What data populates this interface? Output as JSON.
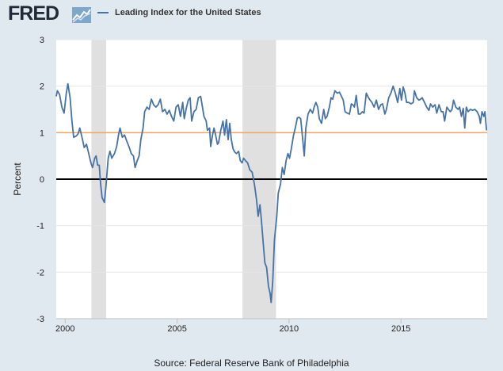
{
  "header": {
    "logo_text": "FRED",
    "legend_label": "Leading Index for the United States"
  },
  "source": "Source: Federal Reserve Bank of Philadelphia",
  "colors": {
    "series": "#4572a7",
    "reference": "#f4a460",
    "recession": "#e0e0e0",
    "background": "#e1e9f0"
  },
  "chart_data": {
    "type": "line",
    "title": "",
    "ylabel": "Percent",
    "xlim": [
      1999.6,
      2018.85
    ],
    "ylim": [
      -3,
      3
    ],
    "yticks": [
      "-3",
      "-2",
      "-1",
      "0",
      "1",
      "2",
      "3"
    ],
    "xticks": [
      "2000",
      "2005",
      "2010",
      "2015"
    ],
    "recessions": [
      [
        2001.17,
        2001.83
      ],
      [
        2007.92,
        2009.42
      ]
    ],
    "reference_line": 1,
    "zero_line": 0,
    "series": [
      {
        "name": "Leading Index for the United States",
        "points": [
          [
            1999.6,
            1.78
          ],
          [
            1999.65,
            1.9
          ],
          [
            1999.75,
            1.82
          ],
          [
            1999.85,
            1.55
          ],
          [
            1999.95,
            1.42
          ],
          [
            2000.05,
            1.85
          ],
          [
            2000.12,
            2.05
          ],
          [
            2000.22,
            1.75
          ],
          [
            2000.3,
            1.25
          ],
          [
            2000.38,
            0.9
          ],
          [
            2000.5,
            0.93
          ],
          [
            2000.58,
            0.98
          ],
          [
            2000.65,
            1.1
          ],
          [
            2000.75,
            0.9
          ],
          [
            2000.85,
            0.68
          ],
          [
            2000.95,
            0.75
          ],
          [
            2001.05,
            0.55
          ],
          [
            2001.15,
            0.35
          ],
          [
            2001.22,
            0.25
          ],
          [
            2001.32,
            0.45
          ],
          [
            2001.38,
            0.5
          ],
          [
            2001.45,
            0.3
          ],
          [
            2001.52,
            0.3
          ],
          [
            2001.58,
            -0.1
          ],
          [
            2001.65,
            -0.4
          ],
          [
            2001.75,
            -0.5
          ],
          [
            2001.83,
            -0.1
          ],
          [
            2001.92,
            0.45
          ],
          [
            2002.0,
            0.6
          ],
          [
            2002.08,
            0.45
          ],
          [
            2002.2,
            0.55
          ],
          [
            2002.3,
            0.7
          ],
          [
            2002.38,
            0.95
          ],
          [
            2002.45,
            1.1
          ],
          [
            2002.55,
            0.9
          ],
          [
            2002.65,
            0.95
          ],
          [
            2002.75,
            0.82
          ],
          [
            2002.85,
            0.7
          ],
          [
            2002.95,
            0.55
          ],
          [
            2003.05,
            0.5
          ],
          [
            2003.12,
            0.25
          ],
          [
            2003.22,
            0.4
          ],
          [
            2003.3,
            0.5
          ],
          [
            2003.38,
            0.85
          ],
          [
            2003.48,
            1.1
          ],
          [
            2003.55,
            1.45
          ],
          [
            2003.65,
            1.55
          ],
          [
            2003.75,
            1.5
          ],
          [
            2003.85,
            1.72
          ],
          [
            2003.95,
            1.6
          ],
          [
            2004.05,
            1.55
          ],
          [
            2004.15,
            1.6
          ],
          [
            2004.25,
            1.72
          ],
          [
            2004.35,
            1.45
          ],
          [
            2004.45,
            1.5
          ],
          [
            2004.55,
            1.4
          ],
          [
            2004.65,
            1.48
          ],
          [
            2004.75,
            1.35
          ],
          [
            2004.85,
            1.25
          ],
          [
            2004.95,
            1.55
          ],
          [
            2005.05,
            1.6
          ],
          [
            2005.15,
            1.35
          ],
          [
            2005.25,
            1.65
          ],
          [
            2005.32,
            1.3
          ],
          [
            2005.42,
            1.55
          ],
          [
            2005.5,
            1.7
          ],
          [
            2005.58,
            1.75
          ],
          [
            2005.65,
            1.25
          ],
          [
            2005.75,
            1.45
          ],
          [
            2005.85,
            1.5
          ],
          [
            2005.95,
            1.75
          ],
          [
            2006.05,
            1.78
          ],
          [
            2006.12,
            1.58
          ],
          [
            2006.2,
            1.35
          ],
          [
            2006.3,
            1.25
          ],
          [
            2006.35,
            1.05
          ],
          [
            2006.45,
            1.1
          ],
          [
            2006.5,
            0.7
          ],
          [
            2006.58,
            0.95
          ],
          [
            2006.65,
            1.1
          ],
          [
            2006.72,
            0.95
          ],
          [
            2006.8,
            0.75
          ],
          [
            2006.85,
            0.78
          ],
          [
            2006.95,
            1.05
          ],
          [
            2007.05,
            1.25
          ],
          [
            2007.12,
            0.95
          ],
          [
            2007.2,
            1.28
          ],
          [
            2007.28,
            0.85
          ],
          [
            2007.35,
            1.2
          ],
          [
            2007.42,
            0.85
          ],
          [
            2007.5,
            0.65
          ],
          [
            2007.58,
            0.58
          ],
          [
            2007.65,
            0.55
          ],
          [
            2007.75,
            0.6
          ],
          [
            2007.82,
            0.4
          ],
          [
            2007.9,
            0.35
          ],
          [
            2007.97,
            0.45
          ],
          [
            2008.05,
            0.4
          ],
          [
            2008.15,
            0.35
          ],
          [
            2008.25,
            0.2
          ],
          [
            2008.35,
            0.15
          ],
          [
            2008.45,
            -0.1
          ],
          [
            2008.55,
            -0.45
          ],
          [
            2008.62,
            -0.8
          ],
          [
            2008.7,
            -0.55
          ],
          [
            2008.77,
            -0.9
          ],
          [
            2008.85,
            -1.4
          ],
          [
            2008.92,
            -1.8
          ],
          [
            2009.0,
            -1.9
          ],
          [
            2009.08,
            -2.3
          ],
          [
            2009.15,
            -2.45
          ],
          [
            2009.2,
            -2.65
          ],
          [
            2009.27,
            -2.2
          ],
          [
            2009.35,
            -1.3
          ],
          [
            2009.45,
            -0.8
          ],
          [
            2009.52,
            -0.3
          ],
          [
            2009.62,
            -0.1
          ],
          [
            2009.7,
            0.25
          ],
          [
            2009.78,
            0.1
          ],
          [
            2009.87,
            0.4
          ],
          [
            2009.95,
            0.55
          ],
          [
            2010.02,
            0.45
          ],
          [
            2010.1,
            0.65
          ],
          [
            2010.2,
            0.95
          ],
          [
            2010.28,
            1.1
          ],
          [
            2010.37,
            1.32
          ],
          [
            2010.45,
            1.33
          ],
          [
            2010.52,
            1.3
          ],
          [
            2010.6,
            0.9
          ],
          [
            2010.68,
            0.5
          ],
          [
            2010.75,
            1.1
          ],
          [
            2010.85,
            1.4
          ],
          [
            2010.95,
            1.5
          ],
          [
            2011.05,
            1.42
          ],
          [
            2011.12,
            1.55
          ],
          [
            2011.2,
            1.65
          ],
          [
            2011.28,
            1.55
          ],
          [
            2011.35,
            1.3
          ],
          [
            2011.45,
            1.2
          ],
          [
            2011.55,
            1.5
          ],
          [
            2011.62,
            1.3
          ],
          [
            2011.7,
            1.35
          ],
          [
            2011.8,
            1.55
          ],
          [
            2011.88,
            1.75
          ],
          [
            2011.95,
            1.72
          ],
          [
            2012.05,
            1.9
          ],
          [
            2012.15,
            1.85
          ],
          [
            2012.25,
            1.87
          ],
          [
            2012.32,
            1.8
          ],
          [
            2012.42,
            1.7
          ],
          [
            2012.5,
            1.45
          ],
          [
            2012.6,
            1.42
          ],
          [
            2012.7,
            1.4
          ],
          [
            2012.78,
            1.62
          ],
          [
            2012.85,
            1.6
          ],
          [
            2012.92,
            1.55
          ],
          [
            2013.0,
            1.8
          ],
          [
            2013.1,
            1.4
          ],
          [
            2013.18,
            1.4
          ],
          [
            2013.28,
            1.45
          ],
          [
            2013.35,
            1.42
          ],
          [
            2013.45,
            1.85
          ],
          [
            2013.55,
            1.75
          ],
          [
            2013.62,
            1.7
          ],
          [
            2013.7,
            1.65
          ],
          [
            2013.8,
            1.55
          ],
          [
            2013.9,
            1.7
          ],
          [
            2014.0,
            1.5
          ],
          [
            2014.1,
            1.6
          ],
          [
            2014.18,
            1.62
          ],
          [
            2014.28,
            1.4
          ],
          [
            2014.35,
            1.5
          ],
          [
            2014.45,
            1.75
          ],
          [
            2014.55,
            1.85
          ],
          [
            2014.65,
            2.0
          ],
          [
            2014.75,
            1.85
          ],
          [
            2014.85,
            1.65
          ],
          [
            2014.95,
            1.95
          ],
          [
            2015.02,
            1.7
          ],
          [
            2015.1,
            1.98
          ],
          [
            2015.18,
            1.85
          ],
          [
            2015.25,
            1.65
          ],
          [
            2015.35,
            1.65
          ],
          [
            2015.45,
            1.62
          ],
          [
            2015.55,
            1.65
          ],
          [
            2015.6,
            1.9
          ],
          [
            2015.7,
            1.75
          ],
          [
            2015.8,
            1.7
          ],
          [
            2015.88,
            1.72
          ],
          [
            2015.95,
            1.75
          ],
          [
            2016.05,
            1.65
          ],
          [
            2016.15,
            1.55
          ],
          [
            2016.25,
            1.48
          ],
          [
            2016.32,
            1.62
          ],
          [
            2016.42,
            1.55
          ],
          [
            2016.52,
            1.6
          ],
          [
            2016.6,
            1.42
          ],
          [
            2016.7,
            1.6
          ],
          [
            2016.8,
            1.45
          ],
          [
            2016.88,
            1.45
          ],
          [
            2016.95,
            1.25
          ],
          [
            2017.05,
            1.55
          ],
          [
            2017.12,
            1.5
          ],
          [
            2017.2,
            1.45
          ],
          [
            2017.28,
            1.5
          ],
          [
            2017.35,
            1.7
          ],
          [
            2017.45,
            1.55
          ],
          [
            2017.55,
            1.5
          ],
          [
            2017.62,
            1.55
          ],
          [
            2017.7,
            1.35
          ],
          [
            2017.78,
            1.52
          ],
          [
            2017.85,
            1.1
          ],
          [
            2017.92,
            1.55
          ],
          [
            2018.0,
            1.45
          ],
          [
            2018.1,
            1.5
          ],
          [
            2018.2,
            1.48
          ],
          [
            2018.3,
            1.5
          ],
          [
            2018.4,
            1.45
          ],
          [
            2018.5,
            1.35
          ],
          [
            2018.55,
            1.2
          ],
          [
            2018.62,
            1.45
          ],
          [
            2018.7,
            1.35
          ],
          [
            2018.75,
            1.45
          ],
          [
            2018.82,
            1.05
          ]
        ]
      }
    ]
  }
}
